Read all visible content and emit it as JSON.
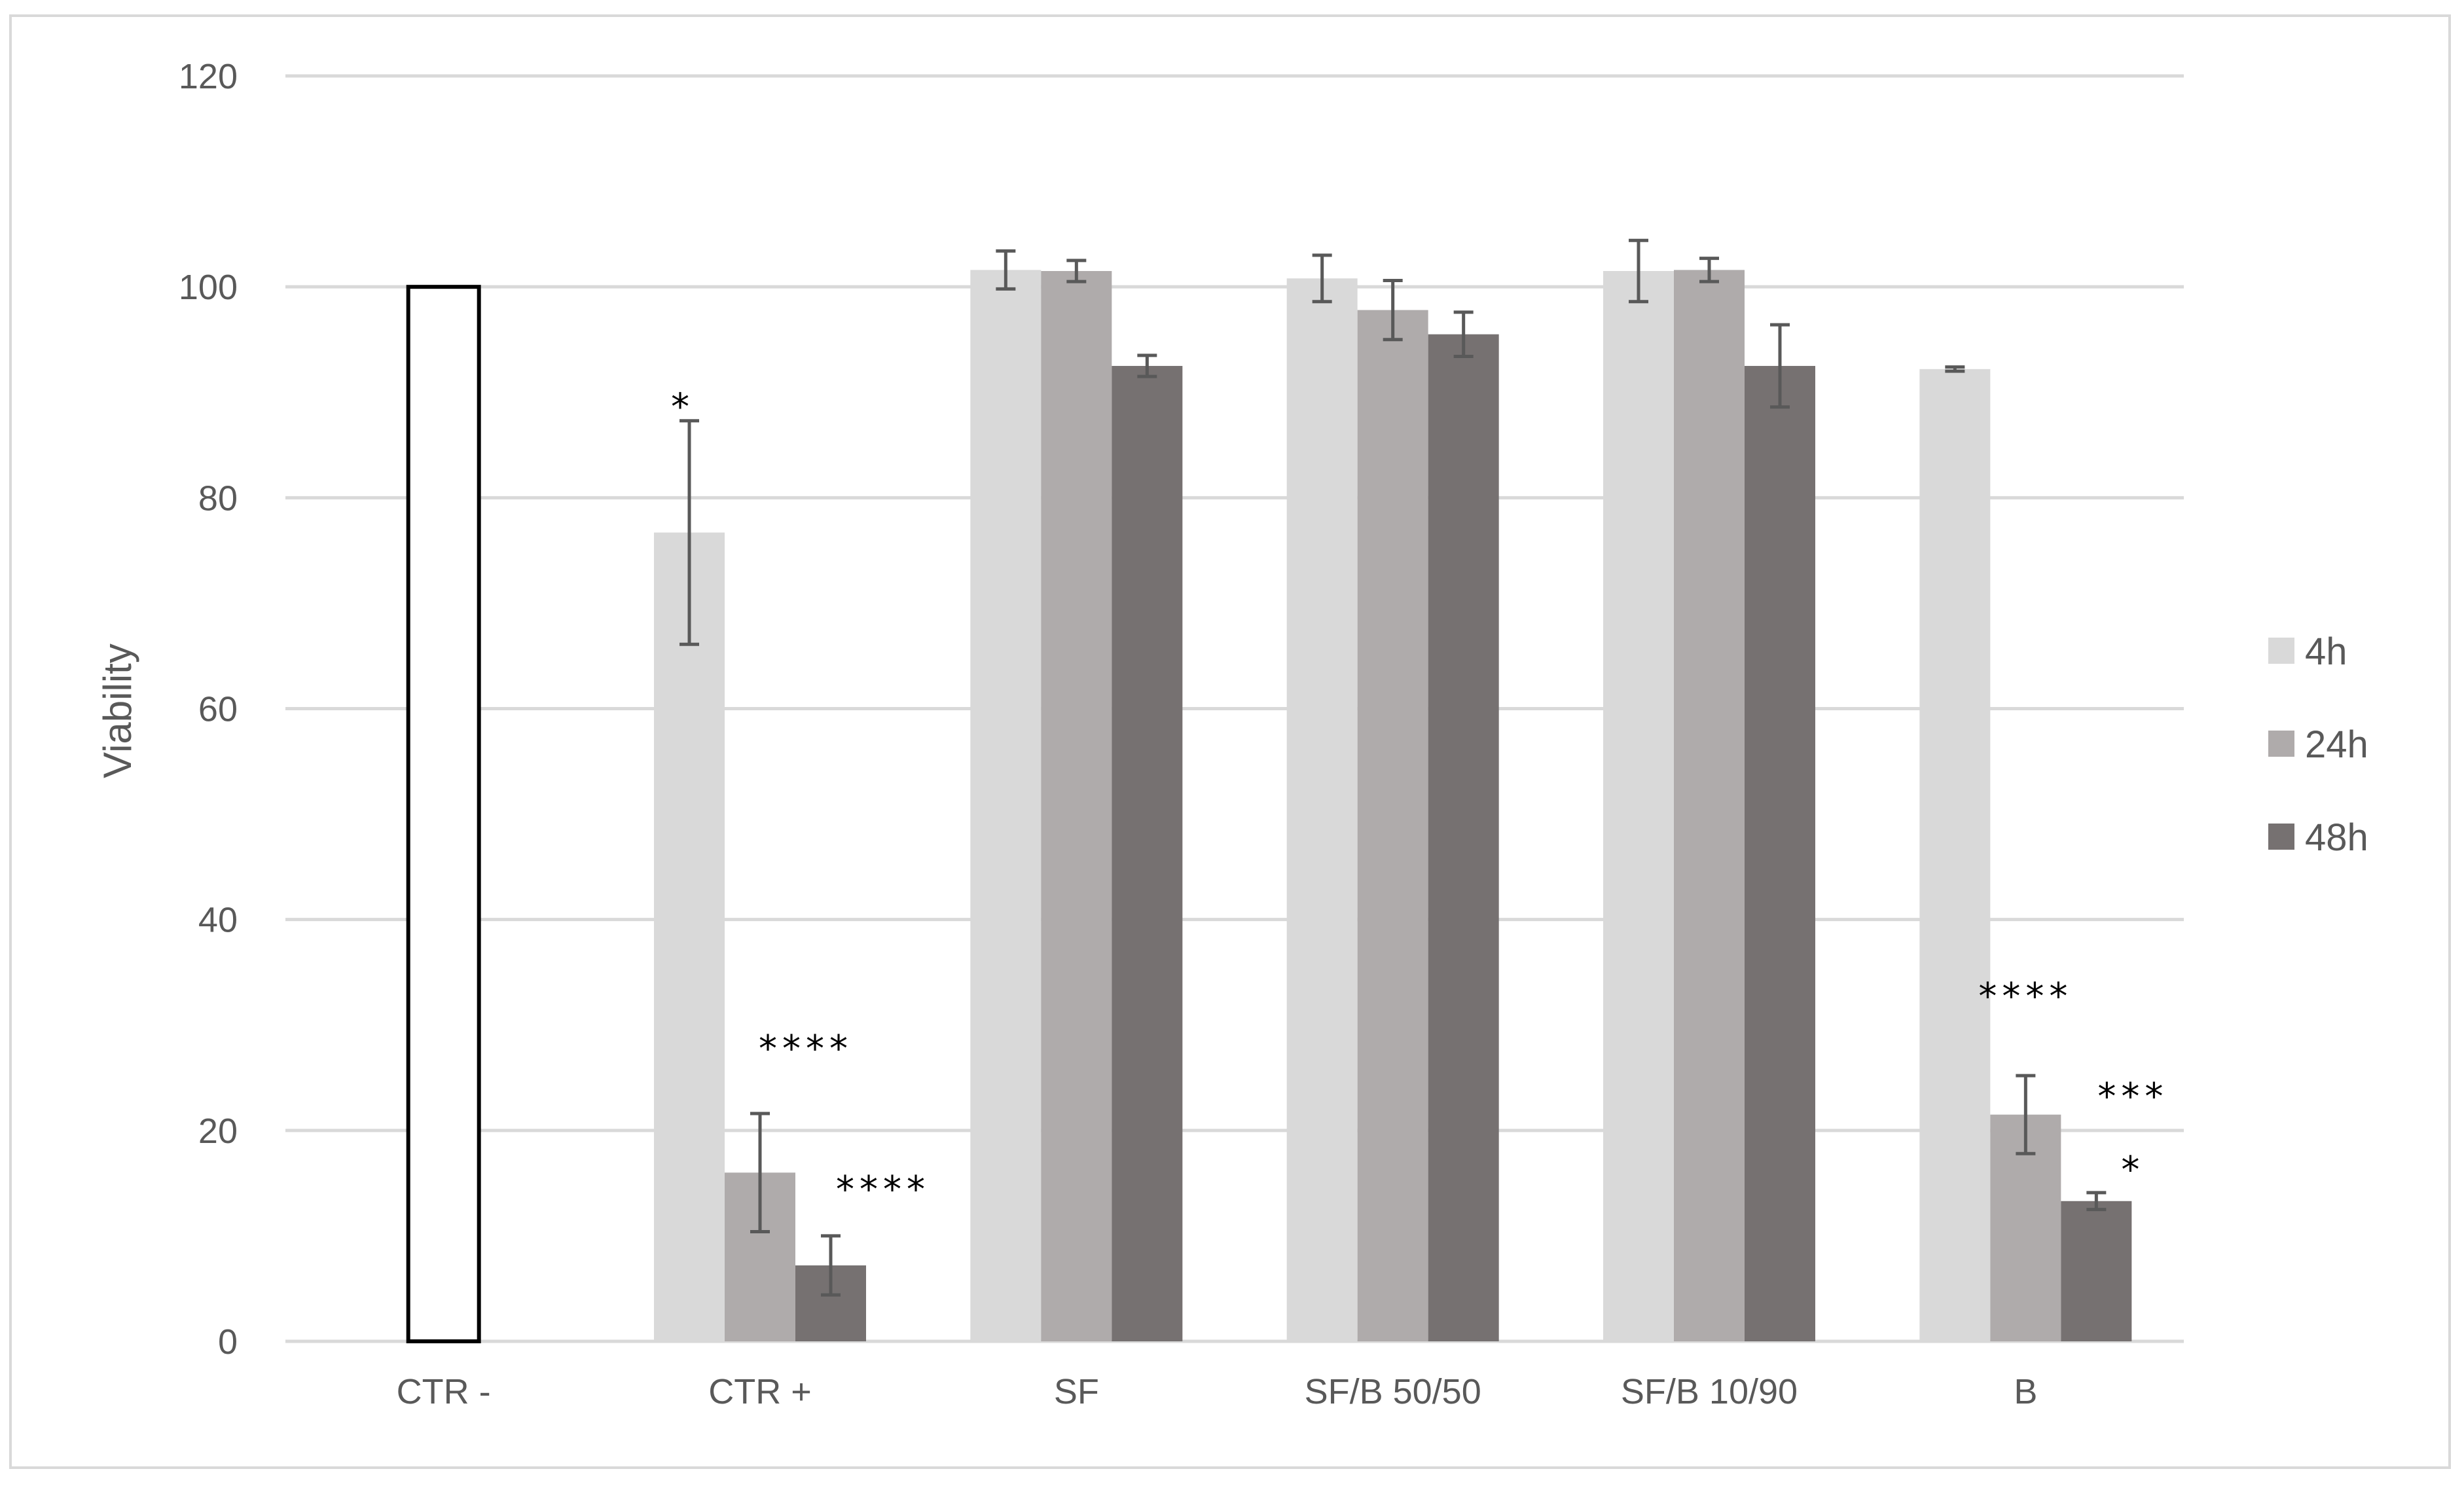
{
  "chart_data": {
    "type": "bar",
    "title": "",
    "xlabel": "",
    "ylabel": "Viability",
    "ylim": [
      0,
      120
    ],
    "yticks": [
      0,
      20,
      40,
      60,
      80,
      100,
      120
    ],
    "grid": true,
    "legend_position": "right",
    "categories": [
      "CTR -",
      "CTR +",
      "SF",
      "SF/B 50/50",
      "SF/B 10/90",
      "B"
    ],
    "control_bar": {
      "category": "CTR -",
      "value": 100,
      "color": "#ffffff",
      "stroke": "#000000"
    },
    "series": [
      {
        "name": "4h",
        "color": "#d9d9d9",
        "values": [
          null,
          76.7,
          101.6,
          100.8,
          101.5,
          92.2
        ],
        "errors": [
          null,
          10.6,
          1.8,
          2.2,
          2.9,
          0.2
        ],
        "significance": [
          null,
          "*",
          null,
          null,
          null,
          null
        ]
      },
      {
        "name": "24h",
        "color": "#afabab",
        "values": [
          null,
          16.0,
          101.5,
          97.8,
          101.6,
          21.5
        ],
        "errors": [
          null,
          5.6,
          1.0,
          2.8,
          1.1,
          3.7
        ],
        "significance": [
          null,
          "****",
          null,
          null,
          null,
          "****"
        ]
      },
      {
        "name": "48h",
        "color": "#767171",
        "values": [
          null,
          7.2,
          92.5,
          95.5,
          92.5,
          13.3
        ],
        "errors": [
          null,
          2.8,
          1.0,
          2.1,
          3.9,
          0.8
        ],
        "significance": [
          null,
          "****",
          null,
          null,
          null,
          "***\n*"
        ]
      }
    ]
  }
}
